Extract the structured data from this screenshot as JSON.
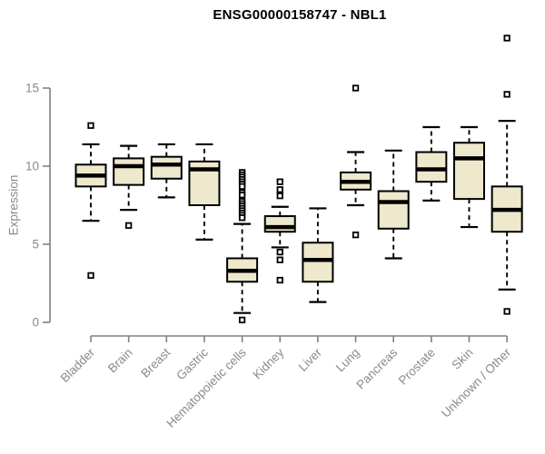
{
  "chart_data": {
    "type": "boxplot",
    "title": "ENSG00000158747 - NBL1",
    "ylabel": "Expression",
    "xlabel": "",
    "ylim": [
      0,
      15
    ],
    "yticks": [
      0,
      5,
      10,
      15
    ],
    "grid": false,
    "categories": [
      "Bladder",
      "Brain",
      "Breast",
      "Gastric",
      "Hematopoietic cells",
      "Kidney",
      "Liver",
      "Lung",
      "Pancreas",
      "Prostate",
      "Skin",
      "Unknown / Other"
    ],
    "series": [
      {
        "name": "Bladder",
        "whisker_low": 6.5,
        "q1": 8.7,
        "median": 9.4,
        "q3": 10.1,
        "whisker_high": 11.4,
        "outliers": [
          12.6,
          3.0
        ]
      },
      {
        "name": "Brain",
        "whisker_low": 7.2,
        "q1": 8.8,
        "median": 10.0,
        "q3": 10.5,
        "whisker_high": 11.3,
        "outliers": [
          6.2
        ]
      },
      {
        "name": "Breast",
        "whisker_low": 8.0,
        "q1": 9.2,
        "median": 10.1,
        "q3": 10.6,
        "whisker_high": 11.4,
        "outliers": []
      },
      {
        "name": "Gastric",
        "whisker_low": 5.3,
        "q1": 7.5,
        "median": 9.8,
        "q3": 10.3,
        "whisker_high": 11.4,
        "outliers": []
      },
      {
        "name": "Hematopoietic cells",
        "whisker_low": 0.6,
        "q1": 2.6,
        "median": 3.3,
        "q3": 4.1,
        "whisker_high": 6.3,
        "outliers": [
          9.6,
          9.45,
          9.3,
          9.15,
          9.0,
          8.85,
          8.7,
          8.3,
          8.15,
          7.75,
          7.6,
          7.45,
          7.3,
          7.15,
          7.0,
          6.85,
          6.7,
          0.15
        ]
      },
      {
        "name": "Kidney",
        "whisker_low": 4.8,
        "q1": 5.8,
        "median": 6.1,
        "q3": 6.8,
        "whisker_high": 7.4,
        "outliers": [
          9.0,
          8.5,
          8.1,
          4.5,
          4.0,
          2.7
        ]
      },
      {
        "name": "Liver",
        "whisker_low": 1.3,
        "q1": 2.6,
        "median": 4.0,
        "q3": 5.1,
        "whisker_high": 7.3,
        "outliers": []
      },
      {
        "name": "Lung",
        "whisker_low": 7.5,
        "q1": 8.5,
        "median": 9.0,
        "q3": 9.6,
        "whisker_high": 10.9,
        "outliers": [
          15.0,
          5.6
        ]
      },
      {
        "name": "Pancreas",
        "whisker_low": 4.1,
        "q1": 6.0,
        "median": 7.7,
        "q3": 8.4,
        "whisker_high": 11.0,
        "outliers": []
      },
      {
        "name": "Prostate",
        "whisker_low": 7.8,
        "q1": 9.0,
        "median": 9.8,
        "q3": 10.9,
        "whisker_high": 12.5,
        "outliers": []
      },
      {
        "name": "Skin",
        "whisker_low": 6.1,
        "q1": 7.9,
        "median": 10.5,
        "q3": 11.5,
        "whisker_high": 12.5,
        "outliers": []
      },
      {
        "name": "Unknown / Other",
        "whisker_low": 2.1,
        "q1": 5.8,
        "median": 7.2,
        "q3": 8.7,
        "whisker_high": 12.9,
        "outliers": [
          18.2,
          14.6,
          0.7
        ]
      }
    ],
    "colors": {
      "box_fill": "#EEE8CC",
      "box_border": "#000000",
      "median": "#000000",
      "whisker": "#000000",
      "outlier_fill": "#ffffff",
      "axis": "#808080",
      "tick_label": "#8a8a8a",
      "title": "#000000",
      "background": "#ffffff"
    }
  }
}
